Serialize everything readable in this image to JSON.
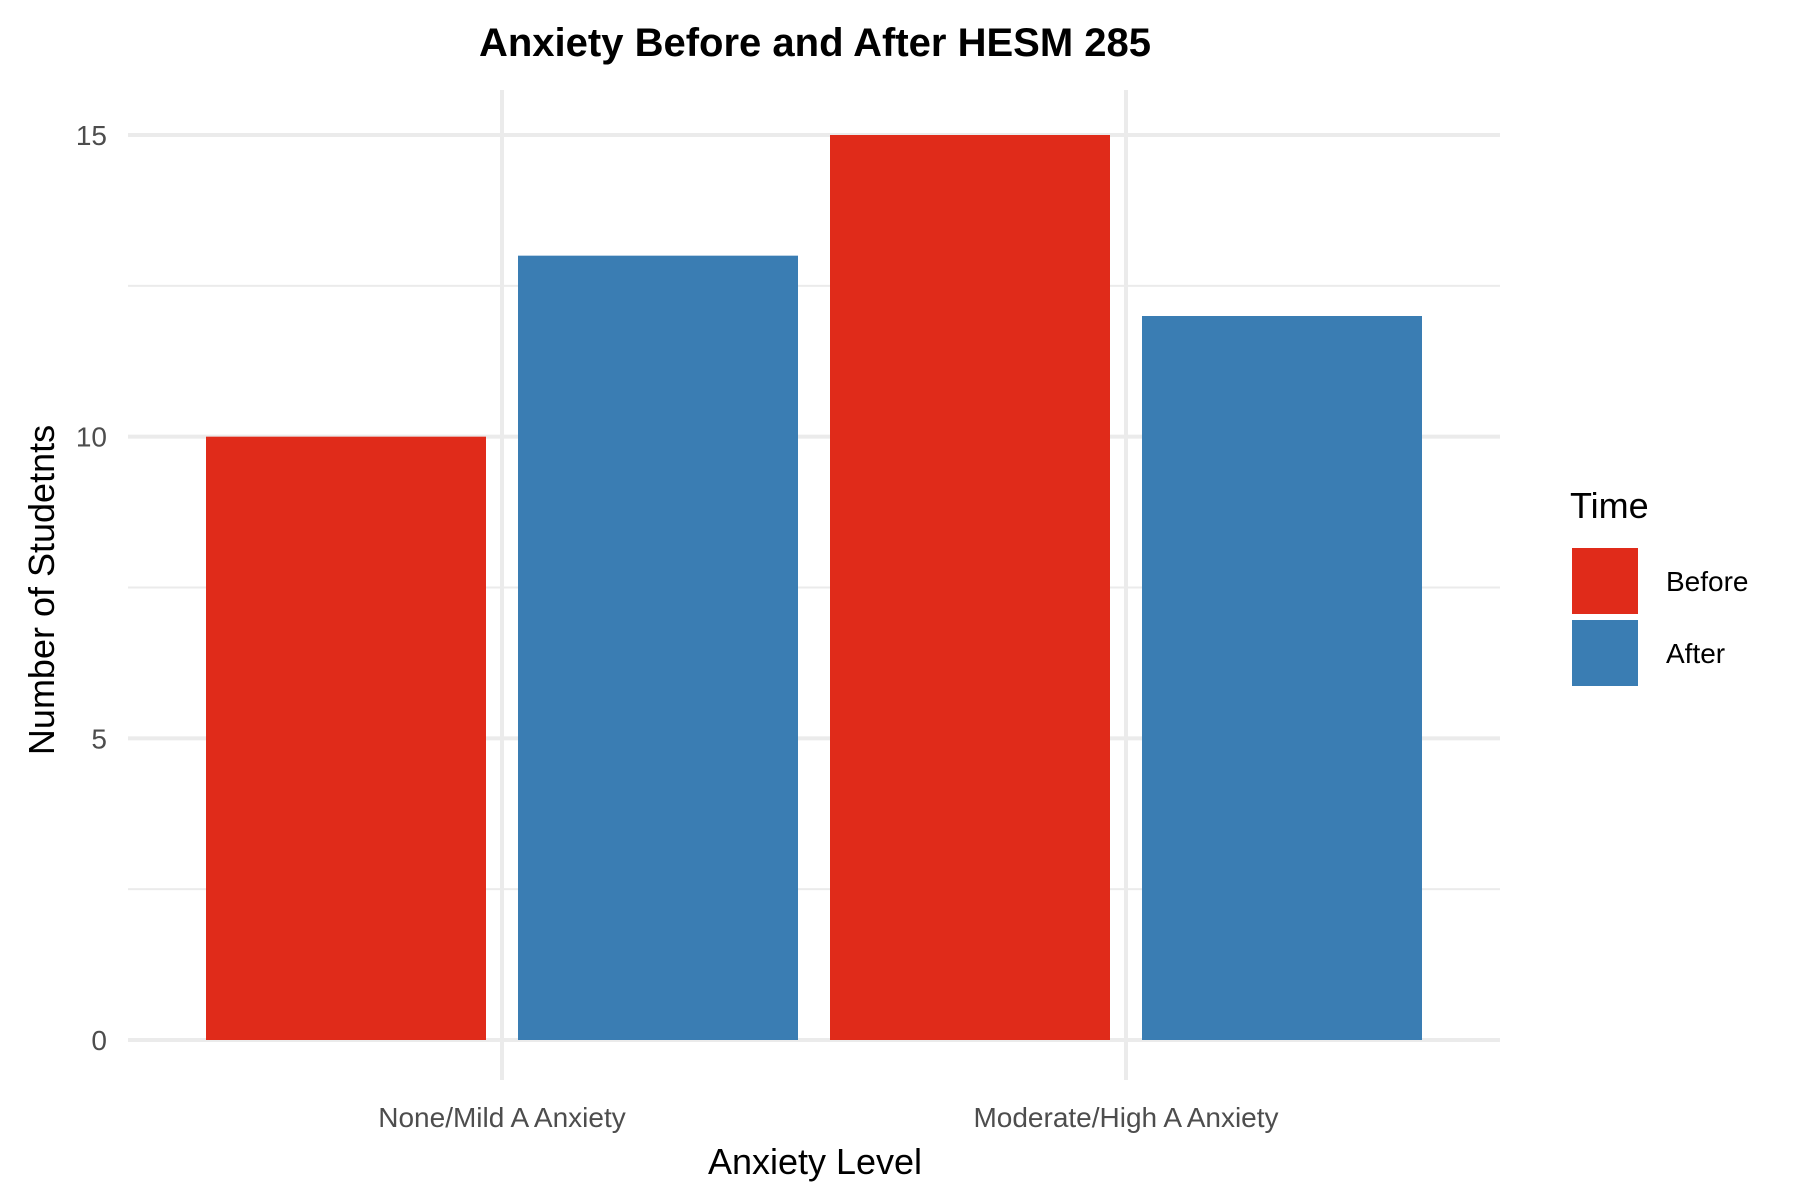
{
  "chart_data": {
    "type": "bar",
    "title": "Anxiety Before and After HESM 285",
    "xlabel": "Anxiety Level",
    "ylabel": "Number of Studetnts",
    "categories": [
      "None/Mild A Anxiety",
      "Moderate/High A Anxiety"
    ],
    "series": [
      {
        "name": "Before",
        "color": "#e02b1a",
        "values": [
          10,
          15
        ]
      },
      {
        "name": "After",
        "color": "#3a7db3",
        "values": [
          13,
          12
        ]
      }
    ],
    "ylim": [
      0,
      15
    ],
    "yticks": [
      0,
      5,
      10,
      15
    ],
    "grid": true,
    "legend": {
      "title": "Time",
      "position": "right"
    }
  }
}
